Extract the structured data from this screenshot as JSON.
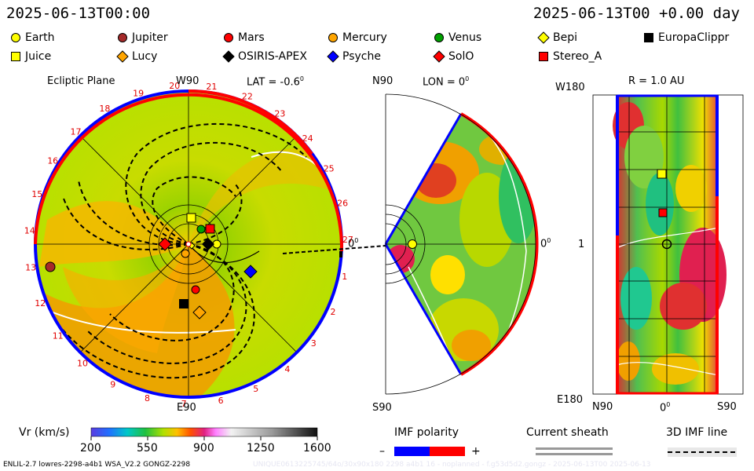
{
  "header": {
    "left_timestamp": "2025-06-13T00:00",
    "right_timestamp": "2025-06-13T00 +0.00 day"
  },
  "legend": {
    "row1": [
      {
        "label": "Earth",
        "shape": "circle",
        "color": "#ffff00"
      },
      {
        "label": "Jupiter",
        "shape": "circle",
        "color": "#a52a2a"
      },
      {
        "label": "Mars",
        "shape": "circle",
        "color": "#ff0000"
      },
      {
        "label": "Mercury",
        "shape": "circle",
        "color": "#ffa500"
      },
      {
        "label": "Venus",
        "shape": "circle",
        "color": "#00a000"
      },
      {
        "label": "Bepi",
        "shape": "diamond",
        "color": "#ffff00"
      },
      {
        "label": "EuropaClippr",
        "shape": "square",
        "color": "#000000"
      }
    ],
    "row2": [
      {
        "label": "Juice",
        "shape": "square",
        "color": "#ffff00"
      },
      {
        "label": "Lucy",
        "shape": "diamond",
        "color": "#ffa500"
      },
      {
        "label": "OSIRIS-APEX",
        "shape": "diamond",
        "color": "#000000"
      },
      {
        "label": "Psyche",
        "shape": "diamond",
        "color": "#0000ff"
      },
      {
        "label": "SolO",
        "shape": "diamond",
        "color": "#ff0000"
      },
      {
        "label": "Stereo_A",
        "shape": "square",
        "color": "#ff0000"
      }
    ]
  },
  "panel_ecliptic": {
    "title": "Ecliptic Plane",
    "top_label": "W90",
    "lat_label": "LAT = -0.6",
    "degree_sign": "0",
    "bottom_label": "E90",
    "zero_label": "0",
    "sector_numbers": [
      "20",
      "21",
      "22",
      "23",
      "24",
      "25",
      "26",
      "27",
      "1",
      "2",
      "3",
      "4",
      "5",
      "6",
      "7",
      "8",
      "9",
      "10",
      "11",
      "12",
      "13",
      "14",
      "15",
      "16",
      "17",
      "18",
      "19"
    ]
  },
  "panel_meridional": {
    "top_label": "N90",
    "lon_label": "LON = 0",
    "degree_sign": "0",
    "bottom_label": "S90",
    "zero_label": "0"
  },
  "panel_map": {
    "title": "R = 1.0 AU",
    "top_left": "W180",
    "mid_left": "1",
    "bottom_left": "E180",
    "x_labels": [
      "N90",
      "0",
      "S90"
    ],
    "degree_sign": "0"
  },
  "colorbar": {
    "title": "Vr (km/s)",
    "ticks": [
      "200",
      "550",
      "900",
      "1250",
      "1600"
    ],
    "range": [
      200,
      1600
    ]
  },
  "imf": {
    "title": "IMF polarity",
    "minus": "–",
    "plus": "+",
    "neg_color": "#0000ff",
    "pos_color": "#ff0000"
  },
  "sheath": {
    "title": "Current sheath"
  },
  "imf3d": {
    "title": "3D IMF line"
  },
  "footer": {
    "left": "ENLIL-2.7 lowres-2298-a4b1 WSA_V2.2 GONGZ-2298",
    "faint": "UNIQUE0613225745/64o/30x90x180 2298 a4b1 16 - noplanned - f.g53d5d2.gongz - 2025-06-13T00 2025-06-13"
  },
  "chart_data": [
    {
      "type": "heatmap",
      "title": "Ecliptic Plane",
      "quantity": "Vr (km/s)",
      "objects_visible": [
        "Earth",
        "Jupiter",
        "Mars",
        "Mercury",
        "Venus",
        "Bepi",
        "EuropaClippr",
        "Juice",
        "Lucy",
        "OSIRIS-APEX",
        "Psyche",
        "SolO",
        "Stereo_A"
      ]
    },
    {
      "type": "heatmap",
      "title": "LON = 0",
      "quantity": "Vr (km/s)"
    },
    {
      "type": "heatmap",
      "title": "R = 1.0 AU",
      "quantity": "Vr (km/s)"
    }
  ]
}
